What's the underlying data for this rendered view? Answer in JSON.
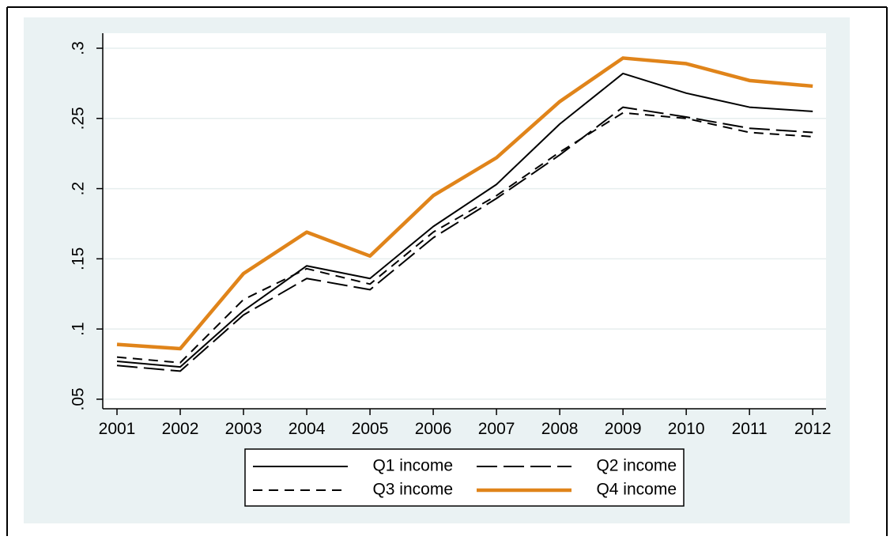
{
  "chart_data": {
    "type": "line",
    "x": [
      2001,
      2002,
      2003,
      2004,
      2005,
      2006,
      2007,
      2008,
      2009,
      2010,
      2011,
      2012
    ],
    "series": [
      {
        "name": "Q1 income",
        "color": "#000000",
        "dash": "solid",
        "linewidth": 2,
        "values": [
          0.077,
          0.073,
          0.113,
          0.145,
          0.136,
          0.173,
          0.203,
          0.246,
          0.282,
          0.268,
          0.258,
          0.255
        ]
      },
      {
        "name": "Q2 income",
        "color": "#000000",
        "dash": "longdash",
        "linewidth": 2,
        "values": [
          0.074,
          0.07,
          0.11,
          0.136,
          0.128,
          0.165,
          0.193,
          0.224,
          0.258,
          0.251,
          0.243,
          0.24
        ]
      },
      {
        "name": "Q3 income",
        "color": "#000000",
        "dash": "shortdash",
        "linewidth": 2,
        "values": [
          0.08,
          0.076,
          0.121,
          0.143,
          0.132,
          0.169,
          0.195,
          0.226,
          0.254,
          0.25,
          0.24,
          0.237
        ]
      },
      {
        "name": "Q4 income",
        "color": "#e0841a",
        "dash": "solid",
        "linewidth": 4.5,
        "values": [
          0.089,
          0.086,
          0.1395,
          0.169,
          0.152,
          0.195,
          0.222,
          0.262,
          0.293,
          0.289,
          0.277,
          0.273
        ]
      }
    ],
    "xlim": [
      2000.775,
      2012.21
    ],
    "xticks": [
      2001,
      2002,
      2003,
      2004,
      2005,
      2006,
      2007,
      2008,
      2009,
      2010,
      2011,
      2012
    ],
    "ylim": [
      0.0432,
      0.3107
    ],
    "yticks": [
      {
        "value": 0.05,
        "label": ".05"
      },
      {
        "value": 0.1,
        "label": ".1"
      },
      {
        "value": 0.15,
        "label": ".15"
      },
      {
        "value": 0.2,
        "label": ".2"
      },
      {
        "value": 0.25,
        "label": ".25"
      },
      {
        "value": 0.3,
        "label": ".3"
      }
    ],
    "grid": true,
    "legend": "bottom"
  }
}
